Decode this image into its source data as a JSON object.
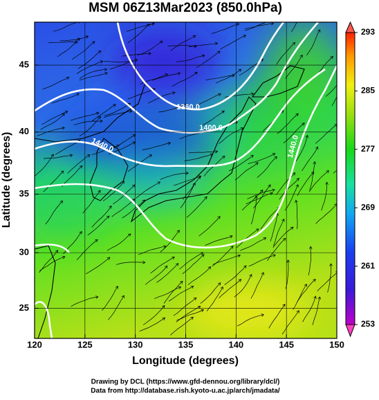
{
  "title": "MSM 06Z13Mar2023 (850.0hPa)",
  "x_label": "Longitude (degrees)",
  "y_label": "Latitude  (degrees)",
  "map": {
    "projection": "mercator",
    "xlim": [
      120,
      150
    ],
    "ylim": [
      22.2,
      48
    ],
    "xticks": [
      120,
      125,
      130,
      135,
      140,
      145,
      150
    ],
    "yticks": [
      25,
      30,
      35,
      40,
      45
    ],
    "grid": true
  },
  "colorbar": {
    "lim": [
      253,
      293
    ],
    "ticks": [
      253,
      261,
      269,
      277,
      285,
      293
    ]
  },
  "contour_labels": [
    "1360.0",
    "1400.0",
    "1440.0",
    "1440.0"
  ],
  "credits": [
    "Drawing by DCL (https://www.gfd-dennou.org/library/dcl/)",
    "Data from http://database.rish.kyoto-u.ac.jp/arch/jmadata/"
  ]
}
